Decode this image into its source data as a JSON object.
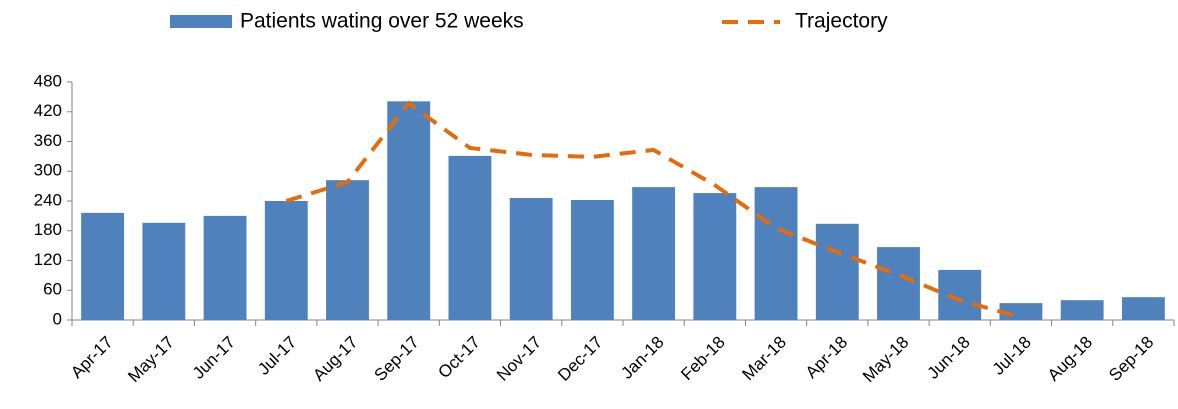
{
  "chart_data": {
    "type": "bar",
    "categories": [
      "Apr-17",
      "May-17",
      "Jun-17",
      "Jul-17",
      "Aug-17",
      "Sep-17",
      "Oct-17",
      "Nov-17",
      "Dec-17",
      "Jan-18",
      "Feb-18",
      "Mar-18",
      "Apr-18",
      "May-18",
      "Jun-18",
      "Jul-18",
      "Aug-18",
      "Sep-18"
    ],
    "series": [
      {
        "name": "Patients wating over 52 weeks",
        "type": "bar",
        "color": "#4f81bd",
        "values": [
          216,
          196,
          210,
          240,
          282,
          441,
          331,
          246,
          242,
          268,
          256,
          268,
          194,
          147,
          101,
          34,
          40,
          46
        ]
      },
      {
        "name": "Trajectory",
        "type": "line",
        "color": "#e46c0a",
        "dashed": true,
        "values": [
          null,
          null,
          null,
          240,
          278,
          437,
          347,
          333,
          329,
          343,
          272,
          185,
          137,
          91,
          40,
          5,
          null,
          null
        ]
      }
    ],
    "ylim": [
      0,
      480
    ],
    "yticks": [
      0,
      60,
      120,
      180,
      240,
      300,
      360,
      420,
      480
    ],
    "legend": "top"
  }
}
